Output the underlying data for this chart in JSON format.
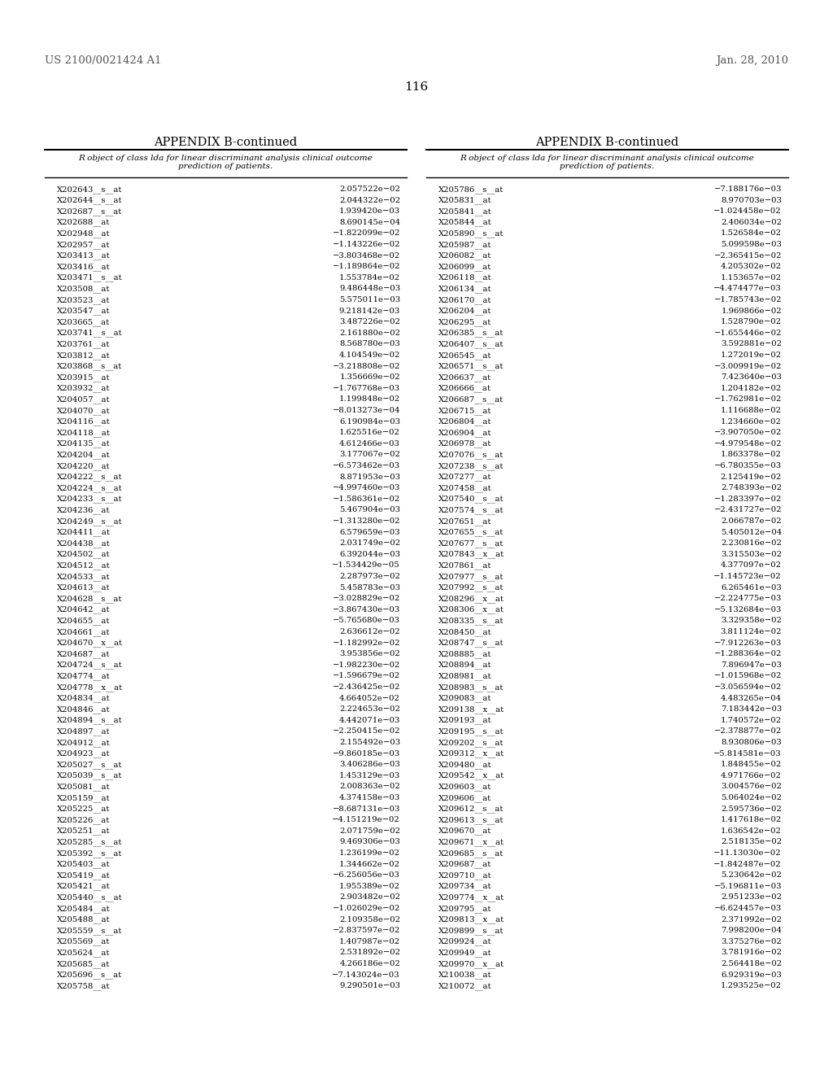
{
  "header_left": "US 2100/0021424 A1",
  "header_right": "Jan. 28, 2010",
  "page_number": "116",
  "appendix_title": "APPENDIX B-continued",
  "table_header": "R object of class lda for linear discriminant analysis clinical outcome\nprediction of patients.",
  "left_col_data": [
    [
      "X202643__s__at",
      "2.057522e−02"
    ],
    [
      "X202644__s__at",
      "2.044322e−02"
    ],
    [
      "X202687__s__at",
      "1.939420e−03"
    ],
    [
      "X202688__at",
      "8.690145e−04"
    ],
    [
      "X202948__at",
      "−1.822099e−02"
    ],
    [
      "X202957__at",
      "−1.143226e−02"
    ],
    [
      "X203413__at",
      "−3.803468e−02"
    ],
    [
      "X203416__at",
      "−1.189864e−02"
    ],
    [
      "X203471__s__at",
      "1.553784e−02"
    ],
    [
      "X203508__at",
      "9.486448e−03"
    ],
    [
      "X203523__at",
      "5.575011e−03"
    ],
    [
      "X203547__at",
      "9.218142e−03"
    ],
    [
      "X203665__at",
      "3.487226e−02"
    ],
    [
      "X203741__s__at",
      "2.161880e−02"
    ],
    [
      "X203761__at",
      "8.568780e−03"
    ],
    [
      "X203812__at",
      "4.104549e−02"
    ],
    [
      "X203868__s__at",
      "−3.218808e−02"
    ],
    [
      "X203915__at",
      "1.356669e−02"
    ],
    [
      "X203932__at",
      "−1.767768e−03"
    ],
    [
      "X204057__at",
      "1.199848e−02"
    ],
    [
      "X204070__at",
      "−8.013273e−04"
    ],
    [
      "X204116__at",
      "6.190984e−03"
    ],
    [
      "X204118__at",
      "1.625516e−02"
    ],
    [
      "X204135__at",
      "4.612466e−03"
    ],
    [
      "X204204__at",
      "3.177067e−02"
    ],
    [
      "X204220__at",
      "−6.573462e−03"
    ],
    [
      "X204222__s__at",
      "8.871953e−03"
    ],
    [
      "X204224__s__at",
      "−4.997460e−03"
    ],
    [
      "X204233__s__at",
      "−1.586361e−02"
    ],
    [
      "X204236__at",
      "5.467904e−03"
    ],
    [
      "X204249__s__at",
      "−1.313280e−02"
    ],
    [
      "X204411__at",
      "6.579659e−03"
    ],
    [
      "X204438__at",
      "2.031749e−02"
    ],
    [
      "X204502__at",
      "6.392044e−03"
    ],
    [
      "X204512__at",
      "−1.534429e−05"
    ],
    [
      "X204533__at",
      "2.287973e−02"
    ],
    [
      "X204613__at",
      "5.458783e−03"
    ],
    [
      "X204628__s__at",
      "−3.028829e−02"
    ],
    [
      "X204642__at",
      "−3.867430e−03"
    ],
    [
      "X204655__at",
      "−5.765680e−03"
    ],
    [
      "X204661__at",
      "2.636612e−02"
    ],
    [
      "X204670__x__at",
      "−1.182992e−02"
    ],
    [
      "X204687__at",
      "3.953856e−02"
    ],
    [
      "X204724__s__at",
      "−1.982230e−02"
    ],
    [
      "X204774__at",
      "−1.596679e−02"
    ],
    [
      "X204778__x__at",
      "−2.436425e−02"
    ],
    [
      "X204834__at",
      "4.664052e−02"
    ],
    [
      "X204846__at",
      "2.224653e−02"
    ],
    [
      "X204894__s__at",
      "4.442071e−03"
    ],
    [
      "X204897__at",
      "−2.250415e−02"
    ],
    [
      "X204912__at",
      "2.155492e−03"
    ],
    [
      "X204923__at",
      "−9.860185e−03"
    ],
    [
      "X205027__s__at",
      "3.406286e−03"
    ],
    [
      "X205039__s__at",
      "1.453129e−03"
    ],
    [
      "X205081__at",
      "2.008363e−02"
    ],
    [
      "X205159__at",
      "4.374158e−03"
    ],
    [
      "X205225__at",
      "−8.687131e−03"
    ],
    [
      "X205226__at",
      "−4.151219e−02"
    ],
    [
      "X205251__at",
      "2.071759e−02"
    ],
    [
      "X205285__s__at",
      "9.469306e−03"
    ],
    [
      "X205392__s__at",
      "1.236199e−02"
    ],
    [
      "X205403__at",
      "1.344662e−02"
    ],
    [
      "X205419__at",
      "−6.256056e−03"
    ],
    [
      "X205421__at",
      "1.955389e−02"
    ],
    [
      "X205440__s__at",
      "2.903482e−02"
    ],
    [
      "X205484__at",
      "−1.026029e−02"
    ],
    [
      "X205488__at",
      "2.109358e−02"
    ],
    [
      "X205559__s__at",
      "−2.837597e−02"
    ],
    [
      "X205569__at",
      "1.407987e−02"
    ],
    [
      "X205624__at",
      "2.531892e−02"
    ],
    [
      "X205685__at",
      "4.266186e−02"
    ],
    [
      "X205696__s__at",
      "−7.143024e−03"
    ],
    [
      "X205758__at",
      "9.290501e−03"
    ]
  ],
  "right_col_data": [
    [
      "X205786__s__at",
      "−7.188176e−03"
    ],
    [
      "X205831__at",
      "8.970703e−03"
    ],
    [
      "X205841__at",
      "−1.024458e−02"
    ],
    [
      "X205844__at",
      "2.406034e−02"
    ],
    [
      "X205890__s__at",
      "1.526584e−02"
    ],
    [
      "X205987__at",
      "5.099598e−03"
    ],
    [
      "X206082__at",
      "−2.365415e−02"
    ],
    [
      "X206099__at",
      "4.205302e−02"
    ],
    [
      "X206118__at",
      "1.153657e−02"
    ],
    [
      "X206134__at",
      "−4.474477e−03"
    ],
    [
      "X206170__at",
      "−1.785743e−02"
    ],
    [
      "X206204__at",
      "1.969866e−02"
    ],
    [
      "X206295__at",
      "1.528790e−02"
    ],
    [
      "X206385__s__at",
      "−1.655446e−02"
    ],
    [
      "X206407__s__at",
      "3.592881e−02"
    ],
    [
      "X206545__at",
      "1.272019e−02"
    ],
    [
      "X206571__s__at",
      "−3.009919e−02"
    ],
    [
      "X206637__at",
      "7.423640e−03"
    ],
    [
      "X206666__at",
      "1.204182e−02"
    ],
    [
      "X206687__s__at",
      "−1.762981e−02"
    ],
    [
      "X206715__at",
      "1.116688e−02"
    ],
    [
      "X206804__at",
      "1.234660e−02"
    ],
    [
      "X206904__at",
      "−3.907050e−02"
    ],
    [
      "X206978__at",
      "−4.979548e−02"
    ],
    [
      "X207076__s__at",
      "1.863378e−02"
    ],
    [
      "X207238__s__at",
      "−6.780355e−03"
    ],
    [
      "X207277__at",
      "2.125419e−02"
    ],
    [
      "X207458__at",
      "2.748393e−02"
    ],
    [
      "X207540__s__at",
      "−1.283397e−02"
    ],
    [
      "X207574__s__at",
      "−2.431727e−02"
    ],
    [
      "X207651__at",
      "2.066787e−02"
    ],
    [
      "X207655__s__at",
      "5.405012e−04"
    ],
    [
      "X207677__s__at",
      "2.230816e−02"
    ],
    [
      "X207843__x__at",
      "3.315503e−02"
    ],
    [
      "X207861__at",
      "4.377097e−02"
    ],
    [
      "X207977__s__at",
      "−1.145723e−02"
    ],
    [
      "X207992__s__at",
      "6.265461e−03"
    ],
    [
      "X208296__x__at",
      "−2.224775e−03"
    ],
    [
      "X208306__x__at",
      "−5.132684e−03"
    ],
    [
      "X208335__s__at",
      "3.329358e−02"
    ],
    [
      "X208450__at",
      "3.811124e−02"
    ],
    [
      "X208747__s__at",
      "−7.912263e−03"
    ],
    [
      "X208885__at",
      "−1.288364e−02"
    ],
    [
      "X208894__at",
      "7.896947e−03"
    ],
    [
      "X208981__at",
      "−1.015968e−02"
    ],
    [
      "X208983__s__at",
      "−3.056594e−02"
    ],
    [
      "X209083__at",
      "4.483265e−04"
    ],
    [
      "X209138__x__at",
      "7.183442e−03"
    ],
    [
      "X209193__at",
      "1.740572e−02"
    ],
    [
      "X209195__s__at",
      "−2.378877e−02"
    ],
    [
      "X209202__s__at",
      "8.930806e−03"
    ],
    [
      "X209312__x__at",
      "−5.814581e−03"
    ],
    [
      "X209480__at",
      "1.848455e−02"
    ],
    [
      "X209542__x__at",
      "4.971766e−02"
    ],
    [
      "X209603__at",
      "3.004576e−02"
    ],
    [
      "X209606__at",
      "5.064024e−02"
    ],
    [
      "X209612__s__at",
      "2.595736e−02"
    ],
    [
      "X209613__s__at",
      "1.417618e−02"
    ],
    [
      "X209670__at",
      "1.636542e−02"
    ],
    [
      "X209671__x__at",
      "2.518135e−02"
    ],
    [
      "X209685__s__at",
      "−11.13030e−02"
    ],
    [
      "X209687__at",
      "−1.842487e−02"
    ],
    [
      "X209710__at",
      "5.230642e−02"
    ],
    [
      "X209734__at",
      "−5.196811e−03"
    ],
    [
      "X209774__x__at",
      "2.951233e−02"
    ],
    [
      "X209795__at",
      "−6.624457e−03"
    ],
    [
      "X209813__x__at",
      "2.371992e−02"
    ],
    [
      "X209899__s__at",
      "7.998200e−04"
    ],
    [
      "X209924__at",
      "3.375276e−02"
    ],
    [
      "X209949__at",
      "3.781916e−02"
    ],
    [
      "X209970__x__at",
      "2.564418e−02"
    ],
    [
      "X210038__at",
      "6.929319e−03"
    ],
    [
      "X210072__at",
      "1.293525e−02"
    ]
  ],
  "bg_color": "#ffffff",
  "text_color": "#000000",
  "header_color": "#555555"
}
